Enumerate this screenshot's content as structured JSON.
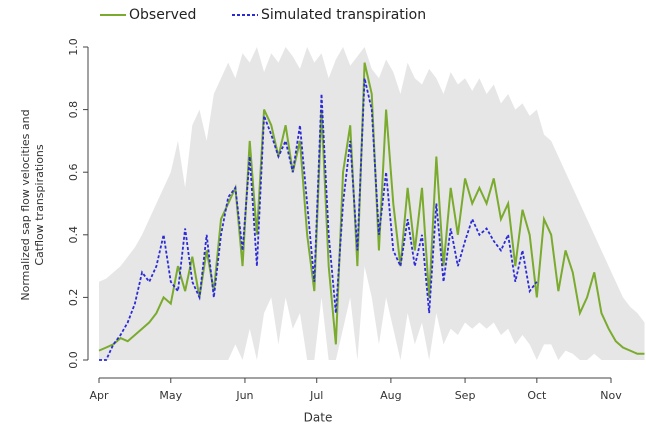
{
  "chart_data": {
    "type": "line",
    "xlabel": "Date",
    "ylabel": [
      "Normalized sap flow velocities and",
      "Catflow transpirations"
    ],
    "xlim": [
      0,
      228
    ],
    "xticks": [
      {
        "value": 0,
        "label": "Apr"
      },
      {
        "value": 30,
        "label": "May"
      },
      {
        "value": 61,
        "label": "Jun"
      },
      {
        "value": 91,
        "label": "Jul"
      },
      {
        "value": 122,
        "label": "Aug"
      },
      {
        "value": 153,
        "label": "Sep"
      },
      {
        "value": 183,
        "label": "Oct"
      },
      {
        "value": 214,
        "label": "Nov"
      }
    ],
    "ylim": [
      0,
      1
    ],
    "yticks": [
      {
        "value": 0,
        "label": "0.0"
      },
      {
        "value": 0.2,
        "label": "0.2"
      },
      {
        "value": 0.4,
        "label": "0.4"
      },
      {
        "value": 0.6,
        "label": "0.6"
      },
      {
        "value": 0.8,
        "label": "0.8"
      },
      {
        "value": 1,
        "label": "1.0"
      }
    ],
    "x": [
      0,
      3,
      6,
      9,
      12,
      15,
      18,
      21,
      24,
      27,
      30,
      33,
      36,
      39,
      42,
      45,
      48,
      51,
      54,
      57,
      60,
      63,
      66,
      69,
      72,
      75,
      78,
      81,
      84,
      87,
      90,
      93,
      96,
      99,
      102,
      105,
      108,
      111,
      114,
      117,
      120,
      123,
      126,
      129,
      132,
      135,
      138,
      141,
      144,
      147,
      150,
      153,
      156,
      159,
      162,
      165,
      168,
      171,
      174,
      177,
      180,
      183,
      186,
      189,
      192,
      195,
      198,
      201,
      204,
      207,
      210,
      213,
      216,
      219,
      222,
      225,
      228
    ],
    "band": {
      "color": "#e6e6e6",
      "upper": [
        0.25,
        0.26,
        0.28,
        0.3,
        0.33,
        0.36,
        0.4,
        0.45,
        0.5,
        0.55,
        0.6,
        0.7,
        0.55,
        0.75,
        0.8,
        0.7,
        0.85,
        0.9,
        0.95,
        0.9,
        0.98,
        0.95,
        1.0,
        0.92,
        0.98,
        0.95,
        1.0,
        0.97,
        0.93,
        1.0,
        0.95,
        0.98,
        0.9,
        0.96,
        1.0,
        0.94,
        0.97,
        1.0,
        0.93,
        0.9,
        0.96,
        0.92,
        0.85,
        0.95,
        0.9,
        0.88,
        0.93,
        0.9,
        0.85,
        0.92,
        0.88,
        0.9,
        0.86,
        0.9,
        0.85,
        0.88,
        0.82,
        0.85,
        0.8,
        0.82,
        0.78,
        0.8,
        0.72,
        0.7,
        0.65,
        0.6,
        0.55,
        0.5,
        0.45,
        0.4,
        0.35,
        0.3,
        0.25,
        0.2,
        0.17,
        0.15,
        0.12
      ],
      "lower": [
        0,
        0,
        0,
        0,
        0,
        0,
        0,
        0,
        0,
        0,
        0,
        0,
        0,
        0,
        0,
        0,
        0,
        0,
        0,
        0.05,
        0,
        0.1,
        0,
        0.15,
        0.2,
        0.05,
        0.2,
        0.1,
        0.15,
        0,
        0,
        0.2,
        0,
        0,
        0.1,
        0.2,
        0,
        0.3,
        0.2,
        0.05,
        0.2,
        0.1,
        0,
        0.15,
        0.05,
        0.12,
        0,
        0.15,
        0.05,
        0.1,
        0.08,
        0.12,
        0.1,
        0.12,
        0.1,
        0.12,
        0.08,
        0.1,
        0.05,
        0.08,
        0.05,
        0,
        0.05,
        0.05,
        0,
        0.03,
        0.02,
        0,
        0,
        0.02,
        0,
        0,
        0,
        0,
        0,
        0,
        0
      ]
    },
    "series": [
      {
        "name": "Observed",
        "color": "#7aab2e",
        "dash": false,
        "values": [
          0.03,
          0.04,
          0.05,
          0.07,
          0.06,
          0.08,
          0.1,
          0.12,
          0.15,
          0.2,
          0.18,
          0.3,
          0.22,
          0.33,
          0.2,
          0.35,
          0.22,
          0.45,
          0.5,
          0.55,
          0.3,
          0.7,
          0.4,
          0.8,
          0.75,
          0.65,
          0.75,
          0.6,
          0.7,
          0.4,
          0.22,
          0.8,
          0.3,
          0.05,
          0.6,
          0.75,
          0.3,
          0.95,
          0.85,
          0.35,
          0.8,
          0.5,
          0.3,
          0.55,
          0.35,
          0.55,
          0.2,
          0.65,
          0.3,
          0.55,
          0.4,
          0.58,
          0.5,
          0.55,
          0.5,
          0.58,
          0.45,
          0.5,
          0.3,
          0.48,
          0.4,
          0.2,
          0.45,
          0.4,
          0.22,
          0.35,
          0.28,
          0.15,
          0.2,
          0.28,
          0.15,
          0.1,
          0.06,
          0.04,
          0.03,
          0.02,
          0.02
        ]
      },
      {
        "name": "Simulated transpiration",
        "color": "#2a2ad6",
        "dash": true,
        "values": [
          0,
          0,
          0.05,
          0.08,
          0.12,
          0.18,
          0.28,
          0.25,
          0.3,
          0.4,
          0.25,
          0.22,
          0.42,
          0.25,
          0.2,
          0.4,
          0.2,
          0.4,
          0.52,
          0.55,
          0.35,
          0.65,
          0.3,
          0.78,
          0.72,
          0.65,
          0.7,
          0.6,
          0.75,
          0.5,
          0.25,
          0.85,
          0.4,
          0.15,
          0.5,
          0.7,
          0.35,
          0.9,
          0.8,
          0.4,
          0.6,
          0.35,
          0.3,
          0.45,
          0.3,
          0.4,
          0.15,
          0.5,
          0.25,
          0.42,
          0.3,
          0.38,
          0.45,
          0.4,
          0.42,
          0.38,
          0.35,
          0.4,
          0.25,
          0.35,
          0.22,
          0.25,
          null,
          null,
          null,
          null,
          null,
          null,
          null,
          null,
          null,
          null,
          null,
          null,
          null,
          null,
          null
        ]
      }
    ]
  }
}
